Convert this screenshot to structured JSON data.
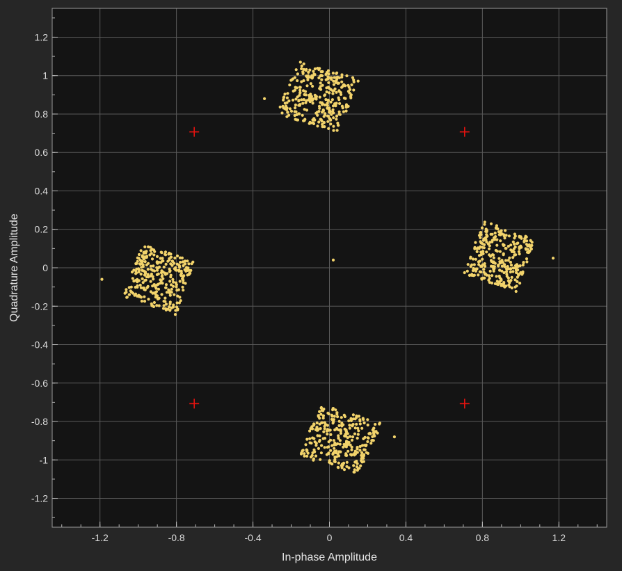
{
  "chart_data": {
    "type": "scatter",
    "title": "",
    "xlabel": "In-phase Amplitude",
    "ylabel": "Quadrature Amplitude",
    "xlim": [
      -1.45,
      1.45
    ],
    "ylim": [
      -1.35,
      1.35
    ],
    "xticks": [
      -1.2,
      -0.8,
      -0.4,
      0,
      0.4,
      0.8,
      1.2
    ],
    "xtick_labels": [
      "-1.2",
      "-0.8",
      "-0.4",
      "0",
      "0.4",
      "0.8",
      "1.2"
    ],
    "yticks": [
      1.2,
      1,
      0.8,
      0.6,
      0.4,
      0.2,
      0,
      -0.2,
      -0.4,
      -0.6,
      -0.8,
      -1,
      -1.2
    ],
    "ytick_labels": [
      "1.2",
      "1",
      "0.8",
      "0.6",
      "0.4",
      "0.2",
      "0",
      "-0.2",
      "-0.4",
      "-0.6",
      "-0.8",
      "-1",
      "-1.2"
    ],
    "grid": true,
    "background_color": "#141414",
    "grid_color": "#5a5a5a",
    "series": [
      {
        "color": "#f2d36b",
        "clusters": [
          {
            "center": [
              -0.06,
              0.89
            ],
            "spread": [
              0.14,
              0.12
            ],
            "count": 300
          },
          {
            "center": [
              0.06,
              -0.89
            ],
            "spread": [
              0.14,
              0.12
            ],
            "count": 300
          },
          {
            "center": [
              0.89,
              0.06
            ],
            "spread": [
              0.12,
              0.12
            ],
            "count": 300
          },
          {
            "center": [
              -0.89,
              -0.06
            ],
            "spread": [
              0.12,
              0.12
            ],
            "count": 300
          }
        ],
        "points": [
          [
            0.02,
            0.04
          ],
          [
            -1.19,
            -0.06
          ],
          [
            1.17,
            0.05
          ],
          [
            0.34,
            -0.88
          ],
          [
            -0.34,
            0.88
          ]
        ]
      },
      {
        "marker": "plus",
        "color": "#e8130f",
        "points": [
          [
            -0.7071,
            0.7071
          ],
          [
            0.7071,
            0.7071
          ],
          [
            -0.7071,
            -0.7071
          ],
          [
            0.7071,
            -0.7071
          ]
        ]
      }
    ]
  }
}
